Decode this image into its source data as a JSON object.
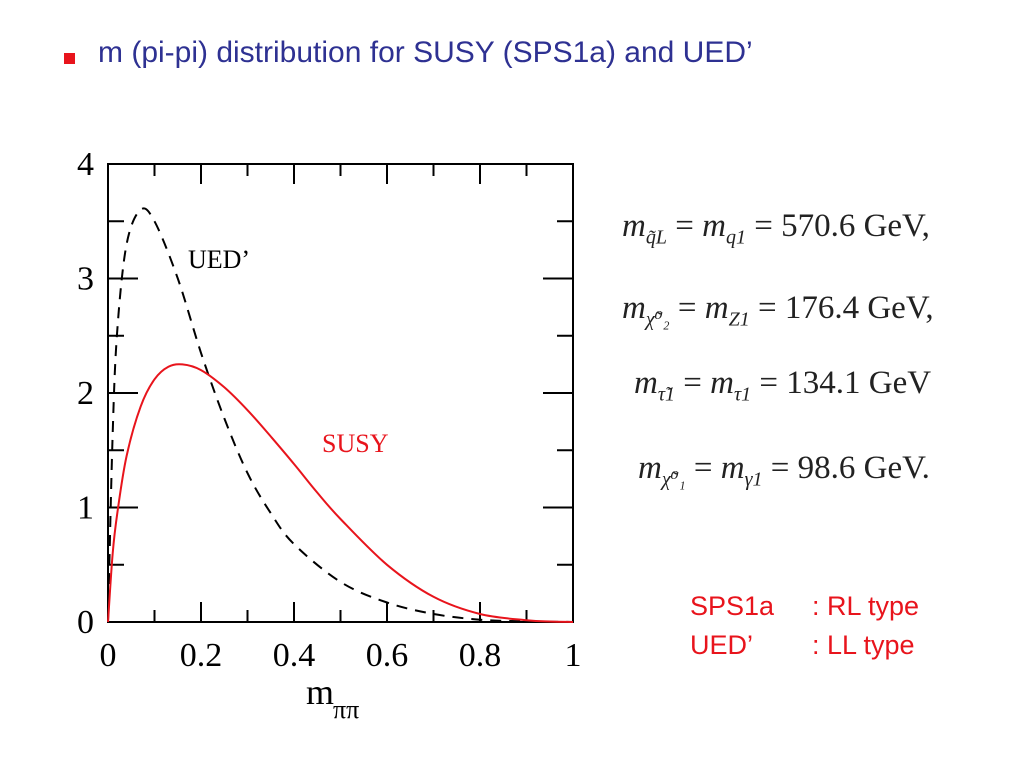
{
  "slide": {
    "title": "m (pi-pi) distribution for SUSY (SPS1a) and UED’"
  },
  "chart_data": {
    "type": "line",
    "xlabel": "m",
    "xlabel_sub": "ππ",
    "ylabel": "",
    "xlim": [
      0,
      1
    ],
    "ylim": [
      0,
      4
    ],
    "xticks": [
      "0",
      "0.2",
      "0.4",
      "0.6",
      "0.8",
      "1"
    ],
    "yticks": [
      "0",
      "1",
      "2",
      "3",
      "4"
    ],
    "grid": false,
    "series": [
      {
        "name": "UED’",
        "style": "dashed",
        "color": "#000000",
        "x": [
          0,
          0.01,
          0.02,
          0.04,
          0.07,
          0.1,
          0.15,
          0.2,
          0.25,
          0.3,
          0.35,
          0.4,
          0.5,
          0.6,
          0.7,
          0.8,
          0.9,
          1.0
        ],
        "y": [
          0,
          1.65,
          2.55,
          3.3,
          3.6,
          3.5,
          3.0,
          2.35,
          1.78,
          1.3,
          0.95,
          0.68,
          0.35,
          0.17,
          0.07,
          0.02,
          0.005,
          0
        ]
      },
      {
        "name": "SUSY",
        "style": "solid",
        "color": "#e8141c",
        "x": [
          0,
          0.01,
          0.02,
          0.04,
          0.07,
          0.1,
          0.13,
          0.16,
          0.2,
          0.25,
          0.3,
          0.35,
          0.4,
          0.45,
          0.5,
          0.6,
          0.7,
          0.8,
          0.9,
          0.95,
          1.0
        ],
        "y": [
          0,
          0.6,
          0.95,
          1.45,
          1.88,
          2.12,
          2.23,
          2.25,
          2.2,
          2.05,
          1.85,
          1.62,
          1.38,
          1.13,
          0.9,
          0.5,
          0.22,
          0.07,
          0.015,
          0.004,
          0
        ]
      }
    ]
  },
  "equations": {
    "eq1": {
      "lhs": "m",
      "lhs_sub": "q̃L",
      "mid": "m",
      "mid_sub": "q1",
      "rhs": "570.6 GeV,"
    },
    "eq2": {
      "lhs": "m",
      "lhs_sub": "χ̃⁰₂",
      "mid": "m",
      "mid_sub": "Z1",
      "rhs": "176.4 GeV,"
    },
    "eq3": {
      "lhs": "m",
      "lhs_sub": "τ̃1",
      "mid": "m",
      "mid_sub": "τ1",
      "rhs": "134.1 GeV"
    },
    "eq4": {
      "lhs": "m",
      "lhs_sub": "χ̃⁰₁",
      "mid": "m",
      "mid_sub": "γ1",
      "rhs": "98.6 GeV."
    }
  },
  "notes": [
    {
      "label": "SPS1a",
      "value": ": RL type"
    },
    {
      "label": "UED’",
      "value": ": LL type"
    }
  ],
  "colors": {
    "title": "#2e3192",
    "accent_red": "#e8141c"
  }
}
